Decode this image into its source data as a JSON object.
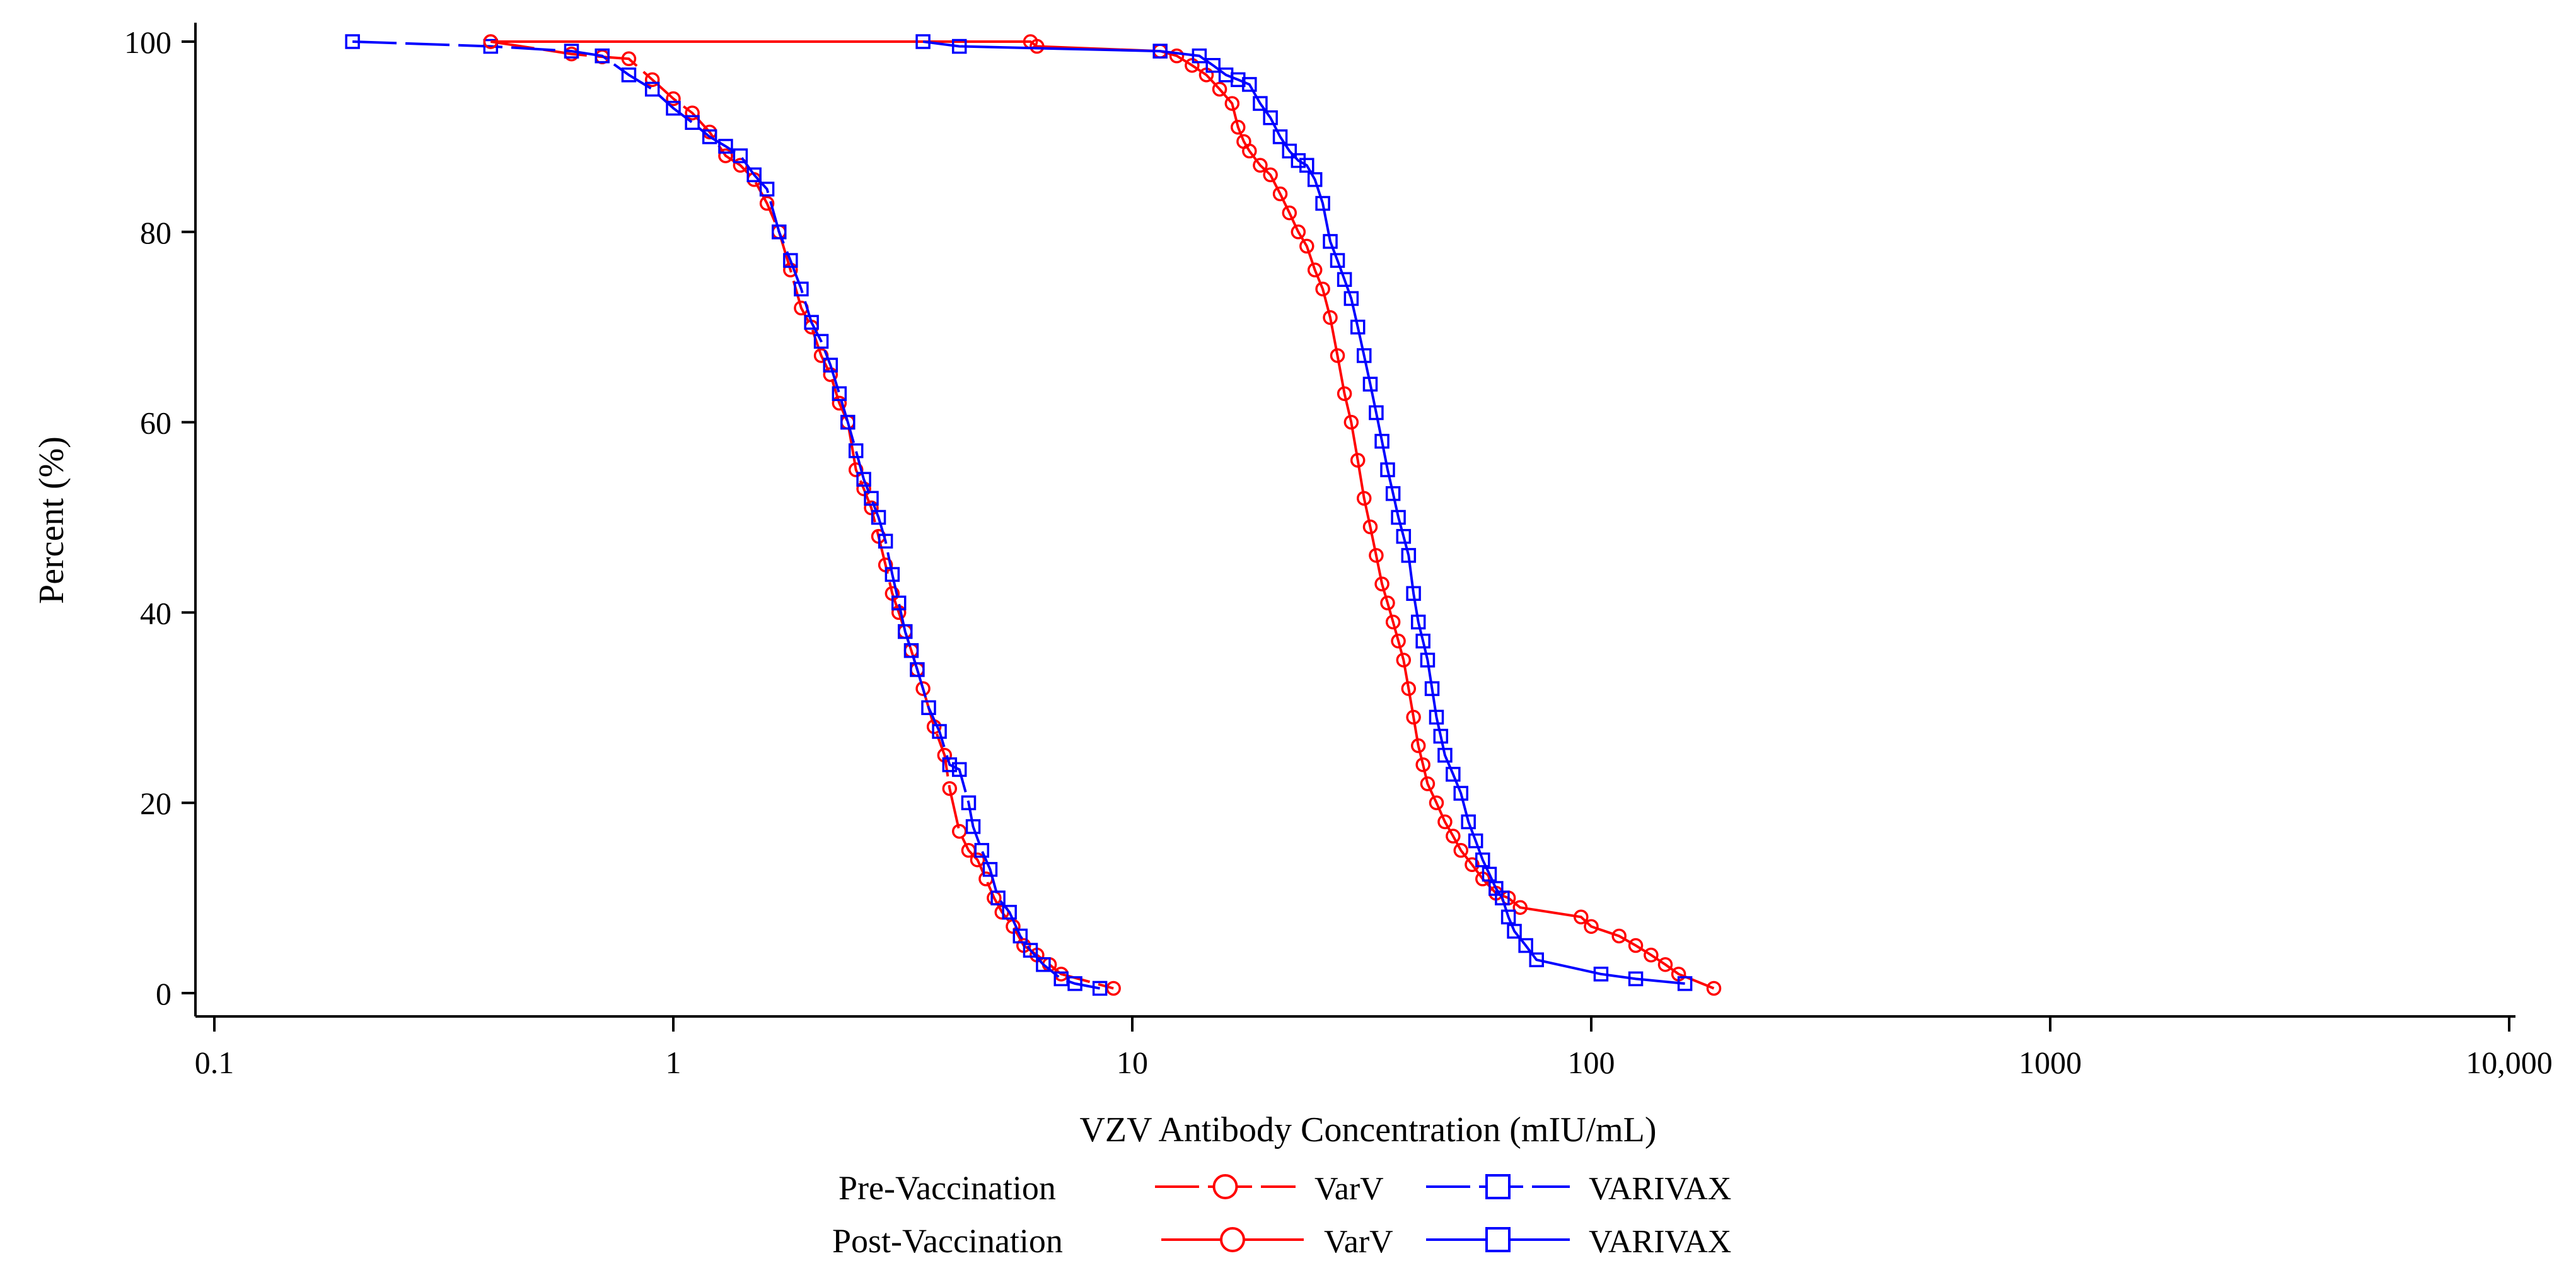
{
  "chart_data": {
    "type": "line",
    "title": "",
    "xlabel": "VZV Antibody Concentration (mIU/mL)",
    "ylabel": "Percent (%)",
    "x_scale": "log",
    "xlim": [
      0.09,
      13000
    ],
    "ylim": [
      -3,
      101
    ],
    "x_ticks": [
      {
        "value": 0.1,
        "label": "0.1"
      },
      {
        "value": 1,
        "label": "1"
      },
      {
        "value": 10,
        "label": "10"
      },
      {
        "value": 100,
        "label": "100"
      },
      {
        "value": 1000,
        "label": "1000"
      },
      {
        "value": 10000,
        "label": "10,000"
      }
    ],
    "y_ticks": [
      {
        "value": 0,
        "label": "0"
      },
      {
        "value": 20,
        "label": "20"
      },
      {
        "value": 40,
        "label": "40"
      },
      {
        "value": 60,
        "label": "60"
      },
      {
        "value": 80,
        "label": "80"
      },
      {
        "value": 100,
        "label": "100"
      }
    ],
    "legend": {
      "rows": [
        {
          "label": "Pre-Vaccination",
          "entries": [
            "VarV",
            "VARIVAX"
          ],
          "line_style": "dashed"
        },
        {
          "label": "Post-Vaccination",
          "entries": [
            "VarV",
            "VARIVAX"
          ],
          "line_style": "solid"
        }
      ]
    },
    "series": [
      {
        "name": "Pre-Vaccination VarV",
        "group": "Pre-Vaccination",
        "product": "VarV",
        "color": "#ff0000",
        "marker": "circle",
        "line_style": "dashed",
        "x": [
          0.4,
          0.6,
          0.7,
          0.8,
          0.9,
          1.0,
          1.1,
          1.2,
          1.3,
          1.4,
          1.5,
          1.6,
          1.7,
          1.8,
          1.9,
          2.0,
          2.1,
          2.2,
          2.3,
          2.4,
          2.5,
          2.6,
          2.7,
          2.8,
          2.9,
          3.0,
          3.1,
          3.2,
          3.3,
          3.4,
          3.5,
          3.7,
          3.9,
          4.0,
          4.2,
          4.4,
          4.6,
          4.8,
          5.0,
          5.2,
          5.5,
          5.8,
          6.2,
          6.6,
          7.0,
          9.1
        ],
        "y": [
          100,
          98.7,
          98.4,
          98.2,
          96.0,
          94.0,
          92.5,
          90.5,
          88.0,
          87.0,
          85.5,
          83.0,
          80.0,
          76.0,
          72.0,
          70.0,
          67.0,
          65.0,
          62.0,
          60.0,
          55.0,
          53.0,
          51.0,
          48.0,
          45.0,
          42.0,
          40.0,
          38.0,
          36.0,
          34.0,
          32.0,
          28.0,
          25.0,
          21.5,
          17.0,
          15.0,
          14.0,
          12.0,
          10.0,
          8.5,
          7.0,
          5.0,
          4.0,
          3.0,
          2.0,
          0.5
        ]
      },
      {
        "name": "Pre-Vaccination VARIVAX",
        "group": "Pre-Vaccination",
        "product": "VARIVAX",
        "color": "#0000ff",
        "marker": "square",
        "line_style": "dashed",
        "x": [
          0.2,
          0.4,
          0.6,
          0.7,
          0.8,
          0.9,
          1.0,
          1.1,
          1.2,
          1.3,
          1.4,
          1.5,
          1.6,
          1.7,
          1.8,
          1.9,
          2.0,
          2.1,
          2.2,
          2.3,
          2.4,
          2.5,
          2.6,
          2.7,
          2.8,
          2.9,
          3.0,
          3.1,
          3.2,
          3.3,
          3.4,
          3.6,
          3.8,
          4.0,
          4.2,
          4.4,
          4.5,
          4.7,
          4.9,
          5.1,
          5.4,
          5.7,
          6.0,
          6.4,
          7.0,
          7.5,
          8.5
        ],
        "y": [
          100,
          99.5,
          99.0,
          98.5,
          96.5,
          95.0,
          93.0,
          91.5,
          90.0,
          89.0,
          88.0,
          86.0,
          84.5,
          80.0,
          77.0,
          74.0,
          70.5,
          68.5,
          66.0,
          63.0,
          60.0,
          57.0,
          54.0,
          52.0,
          50.0,
          47.5,
          44.0,
          41.0,
          38.0,
          36.0,
          34.0,
          30.0,
          27.5,
          24.0,
          23.5,
          20.0,
          17.5,
          15.0,
          13.0,
          10.0,
          8.5,
          6.0,
          4.5,
          3.0,
          1.5,
          1.0,
          0.5
        ]
      },
      {
        "name": "Post-Vaccination VarV",
        "group": "Post-Vaccination",
        "product": "VarV",
        "color": "#ff0000",
        "marker": "circle",
        "line_style": "solid",
        "x": [
          0.4,
          6.0,
          6.2,
          11.5,
          12.5,
          13.5,
          14.5,
          15.5,
          16.5,
          17.0,
          17.5,
          18.0,
          19.0,
          20.0,
          21.0,
          22.0,
          23.0,
          24.0,
          25.0,
          26.0,
          27.0,
          28.0,
          29.0,
          30.0,
          31.0,
          32.0,
          33.0,
          34.0,
          35.0,
          36.0,
          37.0,
          38.0,
          39.0,
          40.0,
          41.0,
          42.0,
          43.0,
          44.0,
          46.0,
          48.0,
          50.0,
          52.0,
          55.0,
          58.0,
          62.0,
          66.0,
          70.0,
          95.0,
          100.0,
          115.0,
          125.0,
          135.0,
          145.0,
          155.0,
          185.0
        ],
        "y": [
          100,
          100,
          99.5,
          99.0,
          98.5,
          97.5,
          96.5,
          95.0,
          93.5,
          91.0,
          89.5,
          88.5,
          87.0,
          86.0,
          84.0,
          82.0,
          80.0,
          78.5,
          76.0,
          74.0,
          71.0,
          67.0,
          63.0,
          60.0,
          56.0,
          52.0,
          49.0,
          46.0,
          43.0,
          41.0,
          39.0,
          37.0,
          35.0,
          32.0,
          29.0,
          26.0,
          24.0,
          22.0,
          20.0,
          18.0,
          16.5,
          15.0,
          13.5,
          12.0,
          10.5,
          10.0,
          9.0,
          8.0,
          7.0,
          6.0,
          5.0,
          4.0,
          3.0,
          2.0,
          0.5
        ]
      },
      {
        "name": "Post-Vaccination VARIVAX",
        "group": "Post-Vaccination",
        "product": "VARIVAX",
        "color": "#0000ff",
        "marker": "square",
        "line_style": "solid",
        "x": [
          3.5,
          4.2,
          11.5,
          14.0,
          15.0,
          16.0,
          17.0,
          18.0,
          19.0,
          20.0,
          21.0,
          22.0,
          23.0,
          24.0,
          25.0,
          26.0,
          27.0,
          28.0,
          29.0,
          30.0,
          31.0,
          32.0,
          33.0,
          34.0,
          35.0,
          36.0,
          37.0,
          38.0,
          39.0,
          40.0,
          41.0,
          42.0,
          43.0,
          44.0,
          45.0,
          46.0,
          47.0,
          48.0,
          50.0,
          52.0,
          54.0,
          56.0,
          58.0,
          60.0,
          62.0,
          64.0,
          66.0,
          68.0,
          72.0,
          76.0,
          105.0,
          125.0,
          160.0
        ],
        "y": [
          100,
          99.5,
          99.0,
          98.5,
          97.5,
          96.5,
          96.0,
          95.5,
          93.5,
          92.0,
          90.0,
          88.5,
          87.5,
          87.0,
          85.5,
          83.0,
          79.0,
          77.0,
          75.0,
          73.0,
          70.0,
          67.0,
          64.0,
          61.0,
          58.0,
          55.0,
          52.5,
          50.0,
          48.0,
          46.0,
          42.0,
          39.0,
          37.0,
          35.0,
          32.0,
          29.0,
          27.0,
          25.0,
          23.0,
          21.0,
          18.0,
          16.0,
          14.0,
          12.5,
          11.0,
          10.0,
          8.0,
          6.5,
          5.0,
          3.5,
          2.0,
          1.5,
          1.0
        ]
      }
    ]
  }
}
